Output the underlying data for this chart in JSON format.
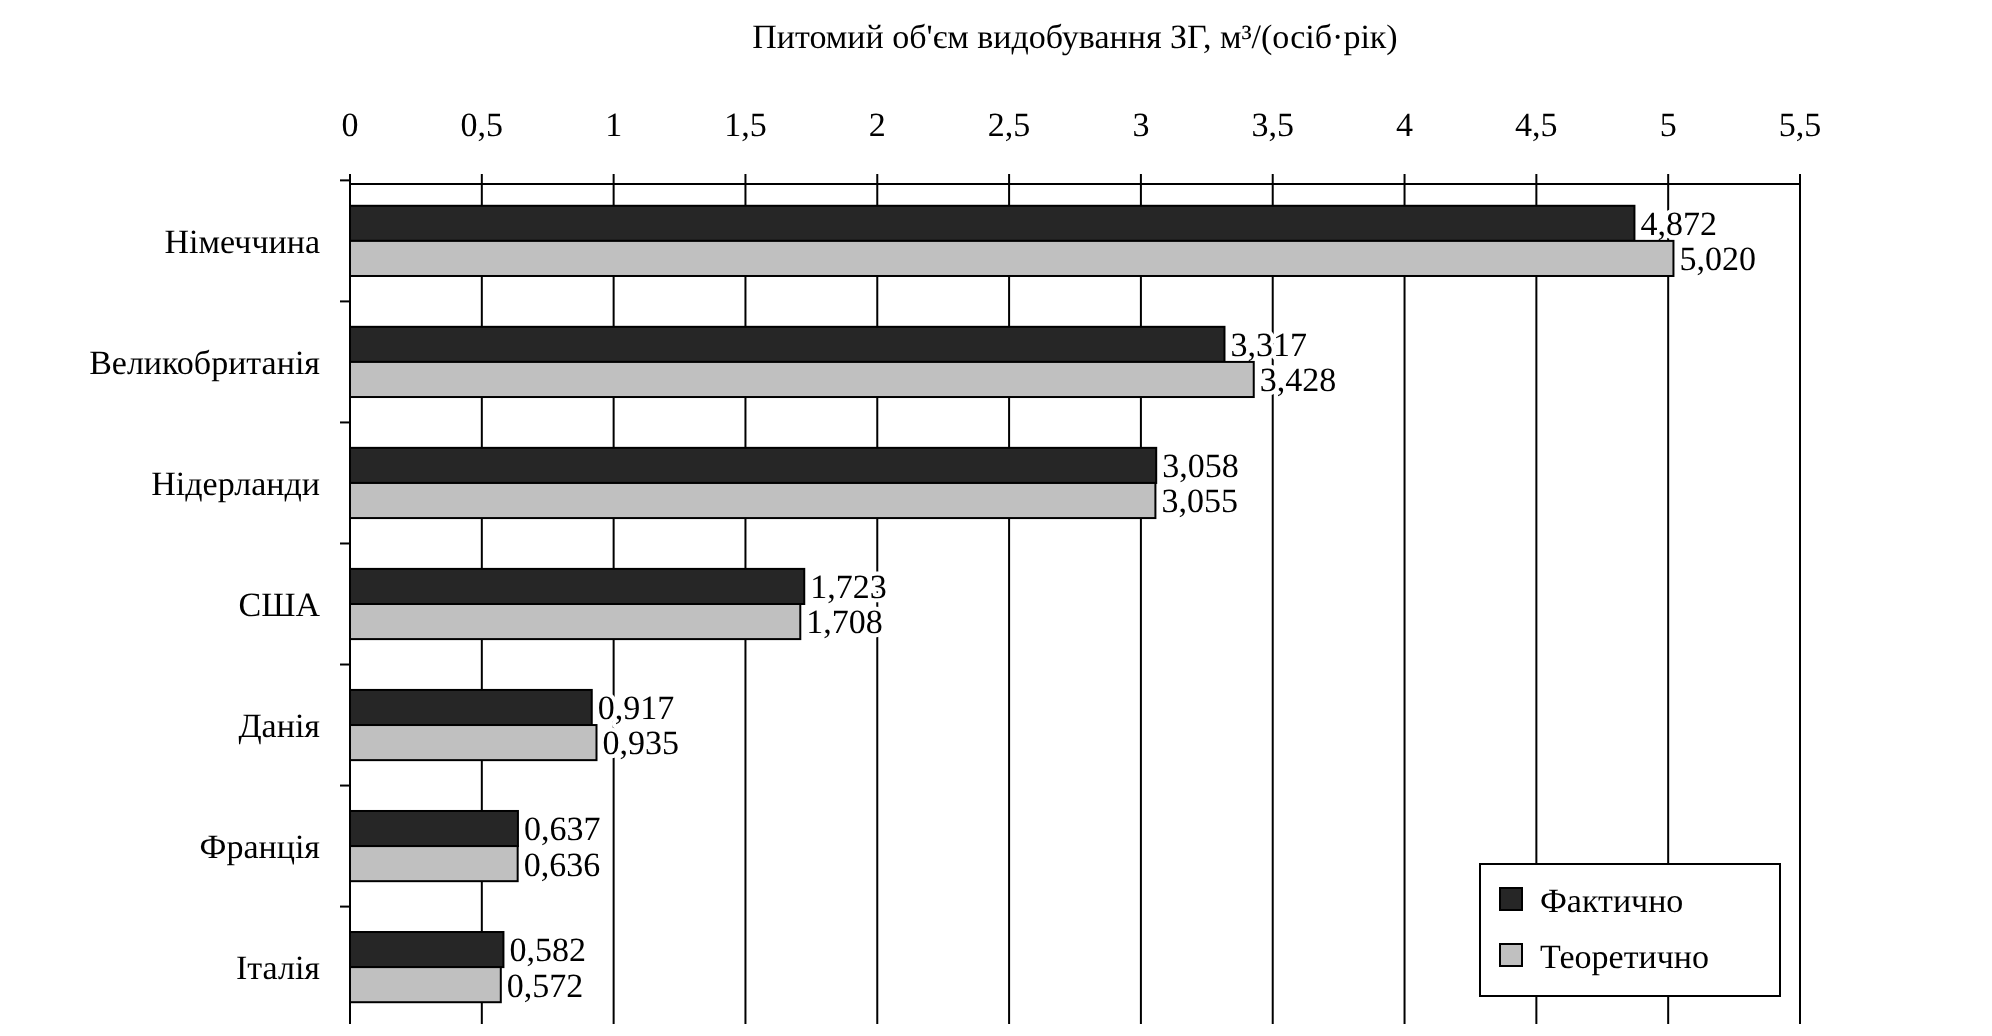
{
  "chart_data": {
    "type": "bar",
    "orientation": "horizontal",
    "xlabel": "Питомий об'єм видобування ЗГ, м³/(осіб·рік)",
    "categories": [
      "Німеччина",
      "Великобританія",
      "Нідерланди",
      "США",
      "Данія",
      "Франція",
      "Італія"
    ],
    "series": [
      {
        "name": "Фактично",
        "color": "#262626",
        "values": [
          4.872,
          3.317,
          3.058,
          1.723,
          0.917,
          0.637,
          0.582
        ],
        "value_labels": [
          "4,872",
          "3,317",
          "3,058",
          "1,723",
          "0,917",
          "0,637",
          "0,582"
        ]
      },
      {
        "name": "Теоретично",
        "color": "#c0c0c0",
        "values": [
          5.02,
          3.428,
          3.055,
          1.708,
          0.935,
          0.636,
          0.572
        ],
        "value_labels": [
          "5,020",
          "3,428",
          "3,055",
          "1,708",
          "0,935",
          "0,636",
          "0,572"
        ]
      }
    ],
    "xlim": [
      0,
      5.5
    ],
    "xticks": [
      0,
      {
        "value": 0.5,
        "label": "0,5"
      },
      1,
      {
        "value": 1.5,
        "label": "1,5"
      },
      2,
      {
        "value": 2.5,
        "label": "2,5"
      },
      3,
      {
        "value": 3.5,
        "label": "3,5"
      },
      4,
      {
        "value": 4.5,
        "label": "4,5"
      },
      5,
      {
        "value": 5.5,
        "label": "5,5"
      }
    ],
    "grid": "x",
    "legend": "bottom right"
  }
}
